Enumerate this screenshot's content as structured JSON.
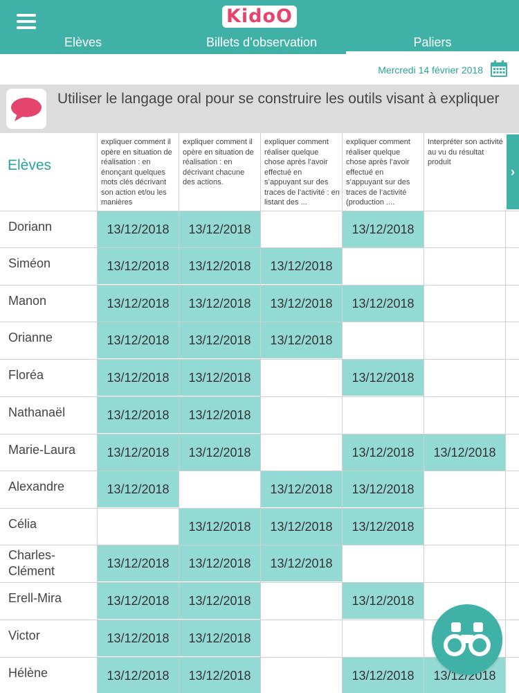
{
  "app": {
    "logo": "KidoO"
  },
  "tabs": [
    {
      "label": "Elèves",
      "active": false
    },
    {
      "label": "Billets d’observation",
      "active": false
    },
    {
      "label": "Paliers",
      "active": true
    }
  ],
  "date": "Mercredi 14 février 2018",
  "skill": {
    "title": "Utiliser le langage oral pour se construire les outils visant à expliquer"
  },
  "table": {
    "students_header": "Elèves",
    "columns": [
      "expliquer comment il opère en situation de réalisation : en énonçant quelques mots clés décrivant son action et/ou les manières",
      "expliquer comment il opère en situation de réalisation : en décrivant chacune des actions.",
      "expliquer comment réaliser quelque chose après l’avoir effectué en s’appuyant sur des traces de l’activité : en listant des ...",
      "expliquer comment réaliser quelque chose après l’avoir effectué en s’appuyant sur des traces de l’activité (production ....",
      "Interpréter son activité au vu du résultat produit"
    ],
    "rows": [
      {
        "name": "Doriann",
        "cells": [
          "13/12/2018",
          "13/12/2018",
          "",
          "13/12/2018",
          ""
        ]
      },
      {
        "name": "Siméon",
        "cells": [
          "13/12/2018",
          "13/12/2018",
          "13/12/2018",
          "",
          ""
        ]
      },
      {
        "name": "Manon",
        "cells": [
          "13/12/2018",
          "13/12/2018",
          "13/12/2018",
          "13/12/2018",
          ""
        ]
      },
      {
        "name": "Orianne",
        "cells": [
          "13/12/2018",
          "13/12/2018",
          "13/12/2018",
          "",
          ""
        ]
      },
      {
        "name": "Floréa",
        "cells": [
          "13/12/2018",
          "13/12/2018",
          "",
          "13/12/2018",
          ""
        ]
      },
      {
        "name": "Nathanaël",
        "cells": [
          "13/12/2018",
          "13/12/2018",
          "",
          "",
          ""
        ]
      },
      {
        "name": "Marie-Laura",
        "cells": [
          "13/12/2018",
          "13/12/2018",
          "",
          "13/12/2018",
          "13/12/2018"
        ]
      },
      {
        "name": "Alexandre",
        "cells": [
          "13/12/2018",
          "",
          "13/12/2018",
          "13/12/2018",
          ""
        ]
      },
      {
        "name": "Célia",
        "cells": [
          "",
          "13/12/2018",
          "13/12/2018",
          "13/12/2018",
          ""
        ]
      },
      {
        "name": "Charles-Clément",
        "cells": [
          "13/12/2018",
          "13/12/2018",
          "13/12/2018",
          "",
          ""
        ]
      },
      {
        "name": "Erell-Mira",
        "cells": [
          "13/12/2018",
          "13/12/2018",
          "",
          "13/12/2018",
          ""
        ]
      },
      {
        "name": "Victor",
        "cells": [
          "13/12/2018",
          "13/12/2018",
          "",
          "",
          ""
        ]
      },
      {
        "name": "Hélène",
        "cells": [
          "13/12/2018",
          "13/12/2018",
          "",
          "13/12/2018",
          "13/12/2018"
        ]
      }
    ]
  },
  "colors": {
    "accent": "#3fb1a6",
    "cell_fill": "#93d9d4",
    "logo": "#e5456d",
    "speech_icon": "#e5456d"
  },
  "icons": {
    "menu": "hamburger-menu-icon",
    "calendar": "calendar-icon",
    "skill": "speech-bubble-icon",
    "next": "chevron-right-icon",
    "fab": "binoculars-icon"
  }
}
